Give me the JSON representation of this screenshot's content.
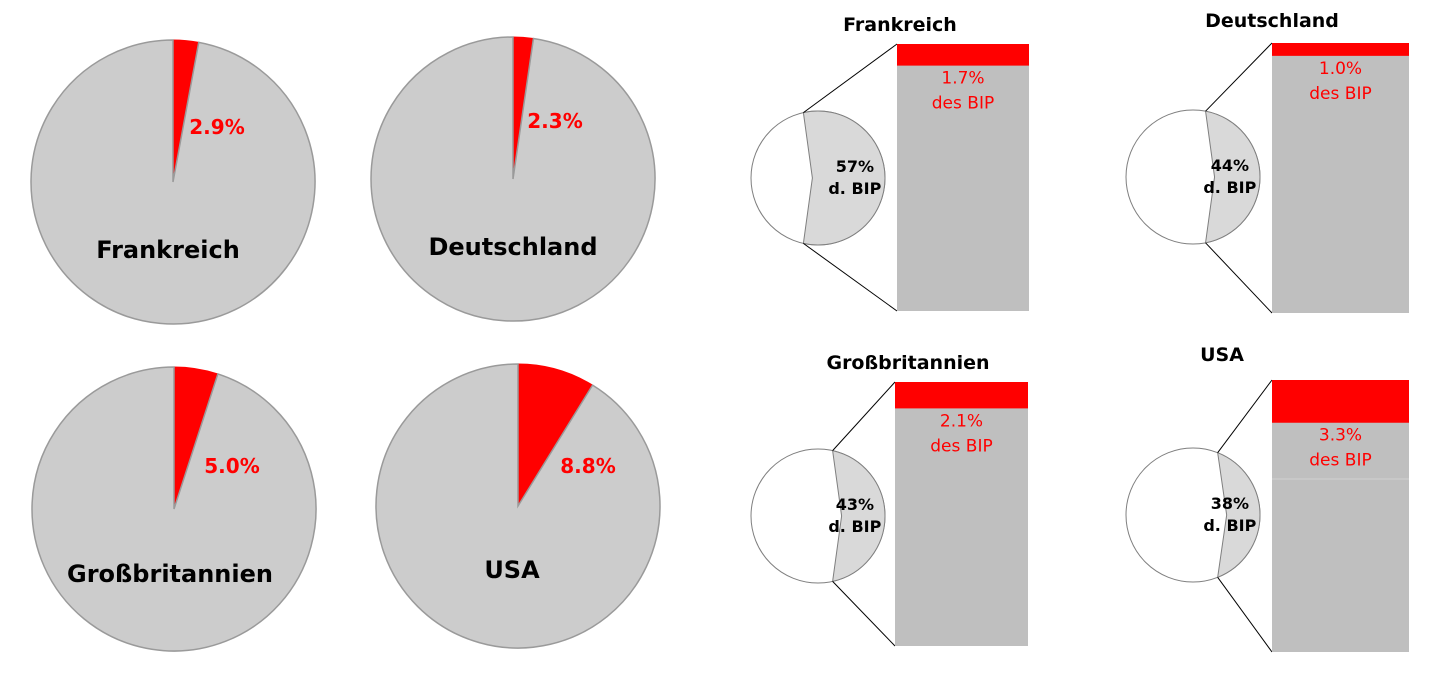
{
  "colors": {
    "highlight": "#ff0000",
    "pie_rest": "#cccccc",
    "pie_edge": "#9a9a9a",
    "bar_fill": "#bfbfbf",
    "circle_part": "#d9d9d9",
    "circle_edge": "#7f7f7f",
    "text": "#000000"
  },
  "chart_data": [
    {
      "type": "pie",
      "title": "Frankreich",
      "slices": [
        {
          "label": "2.9%",
          "value": 2.9,
          "highlight": true
        },
        {
          "label": "",
          "value": 97.1,
          "highlight": false
        }
      ]
    },
    {
      "type": "pie",
      "title": "Deutschland",
      "slices": [
        {
          "label": "2.3%",
          "value": 2.3,
          "highlight": true
        },
        {
          "label": "",
          "value": 97.7,
          "highlight": false
        }
      ]
    },
    {
      "type": "pie",
      "title": "Großbritannien",
      "slices": [
        {
          "label": "5.0%",
          "value": 5.0,
          "highlight": true
        },
        {
          "label": "",
          "value": 95.0,
          "highlight": false
        }
      ]
    },
    {
      "type": "pie",
      "title": "USA",
      "slices": [
        {
          "label": "8.8%",
          "value": 8.8,
          "highlight": true
        },
        {
          "label": "",
          "value": 91.2,
          "highlight": false
        }
      ]
    },
    {
      "type": "bar-of-pie",
      "title": "Frankreich",
      "pie": {
        "value": 57,
        "label_line1": "57%",
        "label_line2": "d. BIP"
      },
      "bar": {
        "value": 1.7,
        "label_line1": "1.7%",
        "label_line2": "des BIP"
      }
    },
    {
      "type": "bar-of-pie",
      "title": "Deutschland",
      "pie": {
        "value": 44,
        "label_line1": "44%",
        "label_line2": "d. BIP"
      },
      "bar": {
        "value": 1.0,
        "label_line1": "1.0%",
        "label_line2": "des BIP"
      }
    },
    {
      "type": "bar-of-pie",
      "title": "Großbritannien",
      "pie": {
        "value": 43,
        "label_line1": "43%",
        "label_line2": "d. BIP"
      },
      "bar": {
        "value": 2.1,
        "label_line1": "2.1%",
        "label_line2": "des BIP"
      }
    },
    {
      "type": "bar-of-pie",
      "title": "USA",
      "pie": {
        "value": 38,
        "label_line1": "38%",
        "label_line2": "d. BIP"
      },
      "bar": {
        "value": 3.3,
        "label_line1": "3.3%",
        "label_line2": "des BIP"
      }
    }
  ]
}
